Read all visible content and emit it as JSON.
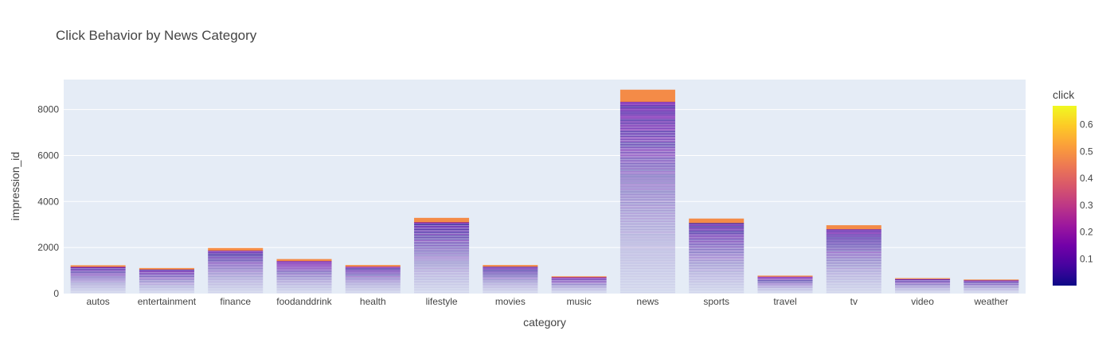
{
  "chart_data": {
    "type": "bar",
    "barmode": "stack",
    "title": "Click Behavior by News Category",
    "xlabel": "category",
    "ylabel": "impression_id",
    "ylim": [
      0,
      9300
    ],
    "yticks": [
      0,
      2000,
      4000,
      6000,
      8000
    ],
    "grid": true,
    "categories": [
      "autos",
      "entertainment",
      "finance",
      "foodanddrink",
      "health",
      "lifestyle",
      "movies",
      "music",
      "news",
      "sports",
      "travel",
      "tv",
      "video",
      "weather"
    ],
    "values": [
      1230,
      1110,
      1980,
      1500,
      1240,
      3290,
      1240,
      750,
      8860,
      3260,
      780,
      2970,
      670,
      610
    ],
    "colorbar": {
      "title": "click",
      "range": [
        0,
        0.67
      ],
      "ticks": [
        0.1,
        0.2,
        0.3,
        0.4,
        0.5,
        0.6
      ]
    },
    "colorscale": [
      "#0d0887",
      "#46039f",
      "#7201a8",
      "#9c179e",
      "#bd3786",
      "#d8576b",
      "#ed7953",
      "#fb9f3a",
      "#fdca26",
      "#f0f921"
    ],
    "colors": {
      "plot_bg": "#e5ecf6",
      "grid": "#ffffff",
      "text": "#444444"
    }
  }
}
